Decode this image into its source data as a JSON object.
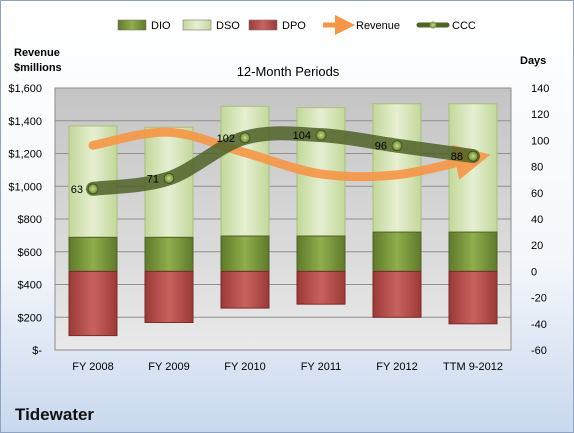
{
  "company_name": "Tidewater",
  "chart_data": {
    "type": "bar",
    "title": "12-Month Periods",
    "left_axis_label": [
      "Revenue",
      "$millions"
    ],
    "right_axis_label": "Days",
    "categories": [
      "FY 2008",
      "FY 2009",
      "FY 2010",
      "FY 2011",
      "FY 2012",
      "TTM 9-2012"
    ],
    "left_axis": {
      "range": [
        0,
        1600
      ],
      "ticks": [
        0,
        200,
        400,
        600,
        800,
        1000,
        1200,
        1400,
        1600
      ],
      "tick_labels": [
        "$-",
        "$200",
        "$400",
        "$600",
        "$800",
        "$1,000",
        "$1,200",
        "$1,400",
        "$1,600"
      ]
    },
    "right_axis": {
      "range": [
        -60,
        140
      ],
      "ticks": [
        -60,
        -40,
        -20,
        0,
        20,
        40,
        60,
        80,
        100,
        120,
        140
      ]
    },
    "grid": true,
    "legend_position": "top",
    "legend": [
      {
        "name": "DIO",
        "kind": "bar",
        "color": "#76923c"
      },
      {
        "name": "DSO",
        "kind": "bar",
        "color": "#d7e4bc"
      },
      {
        "name": "DPO",
        "kind": "bar",
        "color": "#c0504d"
      },
      {
        "name": "Revenue",
        "kind": "arrow",
        "color": "#f79646"
      },
      {
        "name": "CCC",
        "kind": "line",
        "color": "#4f6228"
      }
    ],
    "series": [
      {
        "name": "DIO",
        "axis": "right",
        "values": [
          26,
          26,
          27,
          27,
          30,
          30
        ]
      },
      {
        "name": "DSO",
        "axis": "right",
        "values": [
          85,
          84,
          99,
          98,
          98,
          98
        ]
      },
      {
        "name": "DPO",
        "axis": "right",
        "values": [
          -49,
          -39,
          -28,
          -25,
          -35,
          -40
        ]
      },
      {
        "name": "Revenue",
        "axis": "left",
        "values": [
          1250,
          1330,
          1205,
          1075,
          1070,
          1170
        ]
      },
      {
        "name": "CCC",
        "axis": "right",
        "values": [
          63,
          71,
          102,
          104,
          96,
          88
        ]
      }
    ],
    "ccc_labels": [
      "63",
      "71",
      "102",
      "104",
      "96",
      "88"
    ]
  }
}
